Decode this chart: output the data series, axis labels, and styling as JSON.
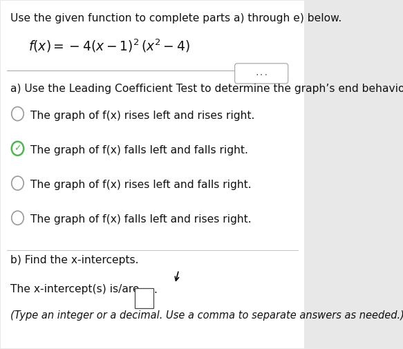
{
  "bg_color": "#e8e8e8",
  "white_bg": "#ffffff",
  "title_text": "Use the given function to complete parts a) through e) below.",
  "part_a_label": "a) Use the Leading Coefficient Test to determine the graph’s end behavior.",
  "options": [
    "The graph of f(x) rises left and rises right.",
    "The graph of f(x) falls left and falls right.",
    "The graph of f(x) rises left and falls right.",
    "The graph of f(x) falls left and rises right."
  ],
  "selected_option": 1,
  "part_b_label": "b) Find the x-intercepts.",
  "intercept_line": "The x-intercept(s) is/are",
  "note_line": "(Type an integer or a decimal. Use a comma to separate answers as needed.)",
  "dots_button_text": "...",
  "radio_color_unselected": "#999999",
  "check_color": "#4db84d",
  "text_color": "#111111",
  "font_size_title": 11.2,
  "font_size_function": 13.5,
  "font_size_body": 11.2,
  "font_size_small": 10.5,
  "separator_color": "#aaaaaa"
}
